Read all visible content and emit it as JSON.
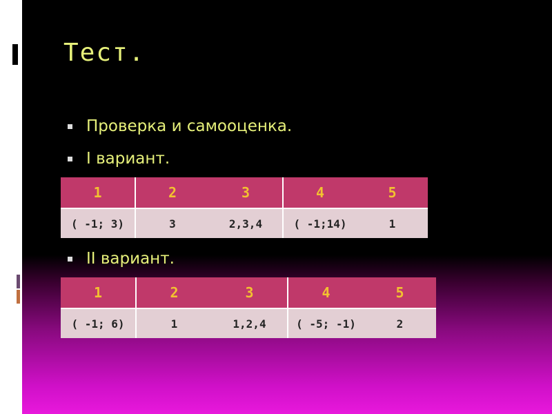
{
  "title": "Тест.",
  "bullets": [
    "Проверка и самооценка.",
    "I вариант.",
    "II вариант."
  ],
  "variant1": {
    "headers": [
      "1",
      "2",
      "3",
      "4",
      "5"
    ],
    "answers": [
      "( -1; 3)",
      "3",
      "2,3,4",
      "( -1;14)",
      "1"
    ]
  },
  "variant2": {
    "headers": [
      "1",
      "2",
      "3",
      "4",
      "5"
    ],
    "answers": [
      "( -1; 6)",
      "1",
      "1,2,4",
      "( -5; -1)",
      "2"
    ]
  },
  "colors": {
    "title": "#e6f07a",
    "header_bg": "#c0396a",
    "header_text": "#f2c230",
    "cell_bg": "#e3cfd4"
  }
}
